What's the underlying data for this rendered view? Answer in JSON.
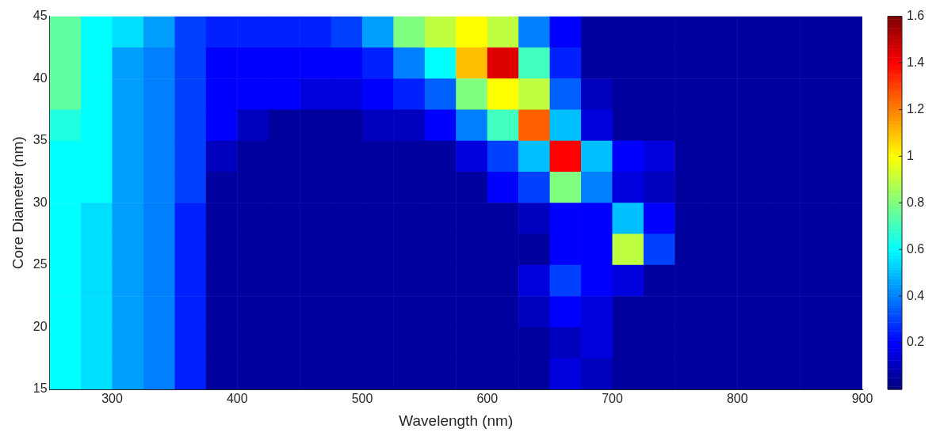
{
  "chart_data": {
    "type": "heatmap",
    "xlabel": "Wavelength (nm)",
    "ylabel": "Core Diameter (nm)",
    "x": [
      262.5,
      287.5,
      312.5,
      337.5,
      362.5,
      387.5,
      412.5,
      437.5,
      462.5,
      487.5,
      512.5,
      537.5,
      562.5,
      587.5,
      612.5,
      637.5,
      662.5,
      687.5,
      712.5,
      737.5,
      762.5,
      787.5,
      812.5,
      837.5,
      862.5,
      887.5
    ],
    "y": [
      43.75,
      41.25,
      38.75,
      36.25,
      33.75,
      31.25,
      28.75,
      26.25,
      23.75,
      21.25,
      18.75,
      16.25
    ],
    "cells": [
      [
        0.75,
        0.6,
        0.55,
        0.45,
        0.3,
        0.25,
        0.25,
        0.25,
        0.25,
        0.3,
        0.45,
        0.8,
        0.9,
        1.0,
        0.9,
        0.4,
        0.2,
        0.05,
        0.05,
        0.05,
        0.05,
        0.05,
        0.05,
        0.05,
        0.05,
        0.05
      ],
      [
        0.75,
        0.6,
        0.45,
        0.4,
        0.3,
        0.2,
        0.2,
        0.2,
        0.2,
        0.2,
        0.25,
        0.4,
        0.6,
        1.1,
        1.45,
        0.7,
        0.25,
        0.05,
        0.05,
        0.05,
        0.05,
        0.05,
        0.05,
        0.05,
        0.05,
        0.05
      ],
      [
        0.75,
        0.6,
        0.45,
        0.4,
        0.3,
        0.2,
        0.2,
        0.2,
        0.15,
        0.15,
        0.2,
        0.25,
        0.35,
        0.8,
        1.0,
        0.9,
        0.35,
        0.1,
        0.05,
        0.05,
        0.05,
        0.05,
        0.05,
        0.05,
        0.05,
        0.05
      ],
      [
        0.65,
        0.6,
        0.45,
        0.4,
        0.3,
        0.2,
        0.1,
        0.05,
        0.05,
        0.05,
        0.1,
        0.1,
        0.2,
        0.4,
        0.7,
        1.25,
        0.5,
        0.15,
        0.05,
        0.05,
        0.05,
        0.05,
        0.05,
        0.05,
        0.05,
        0.05
      ],
      [
        0.6,
        0.6,
        0.45,
        0.4,
        0.3,
        0.1,
        0.05,
        0.05,
        0.05,
        0.05,
        0.05,
        0.05,
        0.05,
        0.15,
        0.3,
        0.5,
        1.4,
        0.5,
        0.2,
        0.15,
        0.05,
        0.05,
        0.05,
        0.05,
        0.05,
        0.05
      ],
      [
        0.6,
        0.6,
        0.45,
        0.4,
        0.3,
        0.05,
        0.05,
        0.05,
        0.05,
        0.05,
        0.05,
        0.05,
        0.05,
        0.05,
        0.2,
        0.3,
        0.8,
        0.4,
        0.15,
        0.1,
        0.05,
        0.05,
        0.05,
        0.05,
        0.05,
        0.05
      ],
      [
        0.6,
        0.55,
        0.45,
        0.4,
        0.25,
        0.05,
        0.05,
        0.05,
        0.05,
        0.05,
        0.05,
        0.05,
        0.05,
        0.05,
        0.05,
        0.1,
        0.2,
        0.2,
        0.5,
        0.2,
        0.05,
        0.05,
        0.05,
        0.05,
        0.05,
        0.05
      ],
      [
        0.6,
        0.55,
        0.45,
        0.4,
        0.25,
        0.05,
        0.05,
        0.05,
        0.05,
        0.05,
        0.05,
        0.05,
        0.05,
        0.05,
        0.05,
        0.05,
        0.2,
        0.2,
        0.9,
        0.3,
        0.05,
        0.05,
        0.05,
        0.05,
        0.05,
        0.05
      ],
      [
        0.6,
        0.55,
        0.45,
        0.4,
        0.25,
        0.05,
        0.05,
        0.05,
        0.05,
        0.05,
        0.05,
        0.05,
        0.05,
        0.05,
        0.05,
        0.15,
        0.3,
        0.2,
        0.15,
        0.05,
        0.05,
        0.05,
        0.05,
        0.05,
        0.05,
        0.05
      ],
      [
        0.6,
        0.55,
        0.45,
        0.4,
        0.25,
        0.05,
        0.05,
        0.05,
        0.05,
        0.05,
        0.05,
        0.05,
        0.05,
        0.05,
        0.05,
        0.1,
        0.2,
        0.15,
        0.05,
        0.05,
        0.05,
        0.05,
        0.05,
        0.05,
        0.05,
        0.05
      ],
      [
        0.6,
        0.55,
        0.45,
        0.4,
        0.25,
        0.05,
        0.05,
        0.05,
        0.05,
        0.05,
        0.05,
        0.05,
        0.05,
        0.05,
        0.05,
        0.05,
        0.1,
        0.15,
        0.05,
        0.05,
        0.05,
        0.05,
        0.05,
        0.05,
        0.05,
        0.05
      ],
      [
        0.6,
        0.55,
        0.45,
        0.4,
        0.25,
        0.05,
        0.05,
        0.05,
        0.05,
        0.05,
        0.05,
        0.05,
        0.05,
        0.05,
        0.05,
        0.05,
        0.15,
        0.1,
        0.05,
        0.05,
        0.05,
        0.05,
        0.05,
        0.05,
        0.05,
        0.05
      ]
    ],
    "xlim": [
      250,
      900
    ],
    "xticks": [
      300,
      400,
      500,
      600,
      700,
      800,
      900
    ],
    "ylim": [
      15,
      45
    ],
    "yticks": [
      15,
      20,
      25,
      30,
      35,
      40,
      45
    ],
    "clim": [
      0,
      1.6
    ],
    "cticks": [
      0.2,
      0.4,
      0.6,
      0.8,
      1,
      1.2,
      1.4,
      1.6
    ]
  }
}
